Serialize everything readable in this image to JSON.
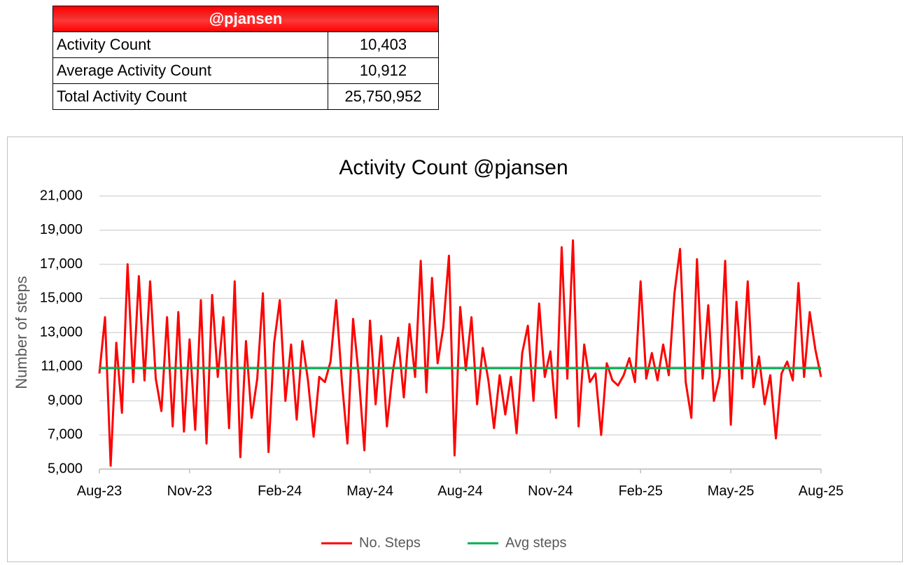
{
  "table": {
    "title": "@pjansen",
    "rows": [
      [
        "Activity Count",
        "10,403"
      ],
      [
        "Average Activity Count",
        "10,912"
      ],
      [
        "Total Activity Count",
        "25,750,952"
      ]
    ]
  },
  "chart_data": {
    "type": "line",
    "title": "Activity Count @pjansen",
    "y_label": "Number of steps",
    "categories": [
      "Aug-23",
      null,
      null,
      null,
      null,
      null,
      null,
      null,
      null,
      null,
      null,
      null,
      null,
      null,
      null,
      null,
      "Nov-23",
      null,
      null,
      null,
      null,
      null,
      null,
      null,
      null,
      null,
      null,
      null,
      null,
      null,
      null,
      null,
      "Feb-24",
      null,
      null,
      null,
      null,
      null,
      null,
      null,
      null,
      null,
      null,
      null,
      null,
      null,
      null,
      null,
      "May-24",
      null,
      null,
      null,
      null,
      null,
      null,
      null,
      null,
      null,
      null,
      null,
      null,
      null,
      null,
      null,
      "Aug-24",
      null,
      null,
      null,
      null,
      null,
      null,
      null,
      null,
      null,
      null,
      null,
      null,
      null,
      null,
      null,
      "Nov-24",
      null,
      null,
      null,
      null,
      null,
      null,
      null,
      null,
      null,
      null,
      null,
      null,
      null,
      null,
      null,
      "Feb-25",
      null,
      null,
      null,
      null,
      null,
      null,
      null,
      null,
      null,
      null,
      null,
      null,
      null,
      null,
      null,
      "May-25",
      null,
      null,
      null,
      null,
      null,
      null,
      null,
      null,
      null,
      null,
      null,
      null,
      null,
      null,
      null,
      "Aug-25"
    ],
    "series": [
      {
        "name": "No. Steps",
        "color": "#ff0000",
        "values": [
          10600,
          13900,
          5200,
          12400,
          8300,
          17000,
          10100,
          16300,
          10200,
          16000,
          10300,
          8400,
          13900,
          7500,
          14200,
          7200,
          12600,
          7300,
          14900,
          6500,
          15200,
          10400,
          13900,
          7400,
          16000,
          5700,
          12500,
          8000,
          10300,
          15300,
          6000,
          12400,
          14900,
          9000,
          12300,
          7900,
          12500,
          10200,
          6900,
          10400,
          10100,
          11300,
          14900,
          10200,
          6500,
          13800,
          10500,
          6100,
          13700,
          8800,
          12800,
          7500,
          10600,
          12700,
          9200,
          13500,
          10400,
          17200,
          9500,
          16200,
          11200,
          13300,
          17500,
          5800,
          14500,
          10800,
          13900,
          8800,
          12100,
          10200,
          7400,
          10500,
          8200,
          10400,
          7100,
          11800,
          13400,
          9000,
          14700,
          10400,
          11900,
          8000,
          18000,
          10300,
          18400,
          7500,
          12300,
          10100,
          10600,
          7000,
          11200,
          10200,
          9900,
          10500,
          11500,
          10100,
          16000,
          10300,
          11800,
          10200,
          12300,
          10500,
          15300,
          17900,
          10100,
          8000,
          17300,
          10300,
          14600,
          9000,
          10400,
          17200,
          7600,
          14800,
          10300,
          16000,
          9800,
          11600,
          8800,
          10500,
          6800,
          10600,
          11300,
          10200,
          15900,
          10400,
          14200,
          12000,
          10400
        ]
      },
      {
        "name": "Avg steps",
        "color": "#00b050",
        "values": [
          10912,
          10912,
          10912,
          10912,
          10912,
          10912,
          10912,
          10912,
          10912,
          10912,
          10912,
          10912,
          10912,
          10912,
          10912,
          10912,
          10912,
          10912,
          10912,
          10912,
          10912,
          10912,
          10912,
          10912,
          10912,
          10912,
          10912,
          10912,
          10912,
          10912,
          10912,
          10912,
          10912,
          10912,
          10912,
          10912,
          10912,
          10912,
          10912,
          10912,
          10912,
          10912,
          10912,
          10912,
          10912,
          10912,
          10912,
          10912,
          10912,
          10912,
          10912,
          10912,
          10912,
          10912,
          10912,
          10912,
          10912,
          10912,
          10912,
          10912,
          10912,
          10912,
          10912,
          10912,
          10912,
          10912,
          10912,
          10912,
          10912,
          10912,
          10912,
          10912,
          10912,
          10912,
          10912,
          10912,
          10912,
          10912,
          10912,
          10912,
          10912,
          10912,
          10912,
          10912,
          10912,
          10912,
          10912,
          10912,
          10912,
          10912,
          10912,
          10912,
          10912,
          10912,
          10912,
          10912,
          10912,
          10912,
          10912,
          10912,
          10912,
          10912,
          10912,
          10912,
          10912,
          10912,
          10912,
          10912,
          10912,
          10912,
          10912,
          10912,
          10912,
          10912,
          10912,
          10912,
          10912,
          10912,
          10912,
          10912,
          10912,
          10912,
          10912,
          10912,
          10912,
          10912,
          10912,
          10912,
          10912
        ]
      }
    ],
    "ylim": [
      5000,
      21000
    ],
    "yticks": [
      {
        "value": 5000,
        "label": "5,000"
      },
      {
        "value": 7000,
        "label": "7,000"
      },
      {
        "value": 9000,
        "label": "9,000"
      },
      {
        "value": 11000,
        "label": "11,000"
      },
      {
        "value": 13000,
        "label": "13,000"
      },
      {
        "value": 15000,
        "label": "15,000"
      },
      {
        "value": 17000,
        "label": "17,000"
      },
      {
        "value": 19000,
        "label": "19,000"
      },
      {
        "value": 21000,
        "label": "21,000"
      }
    ],
    "grid": true,
    "legend": "bottom"
  }
}
